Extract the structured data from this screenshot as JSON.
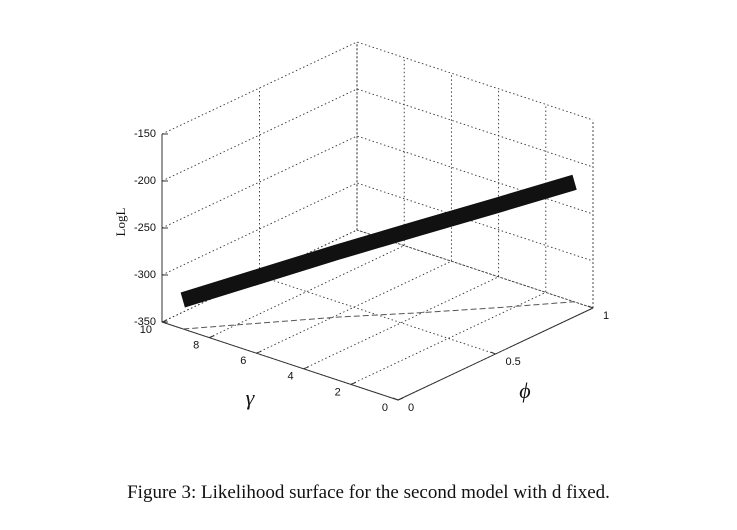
{
  "chart_data": {
    "type": "surface",
    "zlabel": "LogL",
    "ylabel": "γ",
    "xlabel": "ϕ",
    "x": [
      0,
      0.2,
      0.4,
      0.6,
      0.8,
      1
    ],
    "y": [
      9.1,
      7.5,
      5.9,
      4.1,
      2.4,
      0.8
    ],
    "z": [
      -319,
      -300,
      -281,
      -260,
      -241,
      -223
    ],
    "color": "#111111",
    "xlim": [
      0,
      1
    ],
    "xticks": [
      0,
      0.5,
      1
    ],
    "ylim": [
      0,
      10
    ],
    "yticks": [
      0,
      2,
      4,
      6,
      8,
      10
    ],
    "zlim": [
      -350,
      -150
    ],
    "zticks": [
      -350,
      -300,
      -250,
      -200,
      -150
    ],
    "grid": true
  },
  "caption": "Figure 3: Likelihood surface for the second model with d fixed."
}
